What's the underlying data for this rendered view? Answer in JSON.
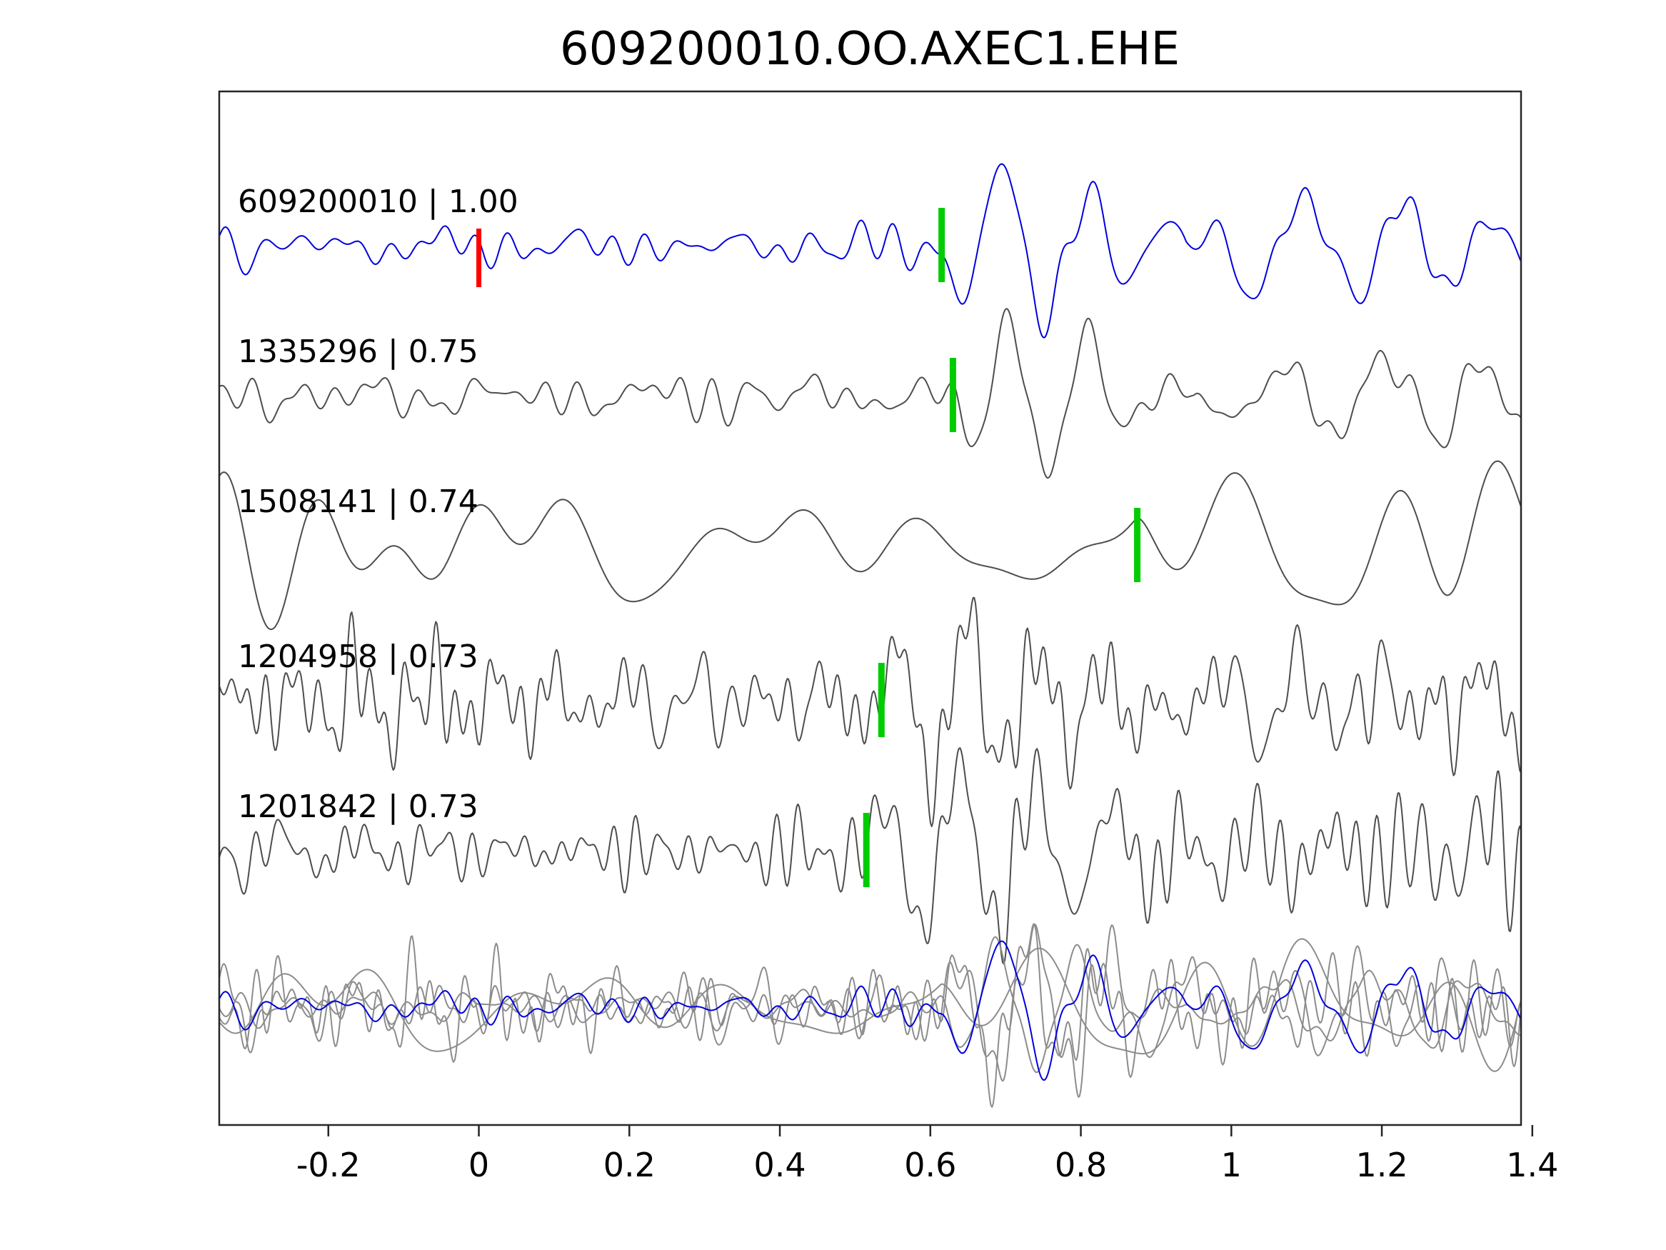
{
  "title": "609200010.OO.AXEC1.EHE",
  "colors": {
    "reference_trace": "#0000dd",
    "match_trace": "#4d4d4d",
    "overlay_trace": "#8c8c8c",
    "pick_marker": "#00cc00",
    "zero_marker": "#ff0000",
    "axis": "#262626",
    "text": "#000000",
    "background": "#ffffff"
  },
  "chart_data": {
    "type": "line",
    "title": "609200010.OO.AXEC1.EHE",
    "xlabel": "",
    "ylabel": "",
    "grid": false,
    "legend": null,
    "xlim": [
      -0.345,
      1.385
    ],
    "axis": {
      "ticks": [
        {
          "value": -0.2,
          "label": "-0.2"
        },
        {
          "value": 0,
          "label": "0"
        },
        {
          "value": 0.2,
          "label": "0.2"
        },
        {
          "value": 0.4,
          "label": "0.4"
        },
        {
          "value": 0.6,
          "label": "0.6"
        },
        {
          "value": 0.8,
          "label": "0.8"
        },
        {
          "value": 1,
          "label": "1"
        },
        {
          "value": 1.2,
          "label": "1.2"
        },
        {
          "value": 1.4,
          "label": "1.4"
        }
      ]
    },
    "traces": [
      {
        "id": "609200010",
        "correlation": "1.00",
        "label": "609200010 | 1.00",
        "is_reference": true,
        "pick_time": 0.615,
        "zero_marker": 0,
        "render": {
          "seed": 42,
          "noise_amp": 15,
          "noise_freq": 18,
          "events": [
            {
              "t": 0.615,
              "amp": 118,
              "freq": 9,
              "phase": 3.3,
              "ramp": 0.085
            },
            {
              "t": 0.94,
              "amp": 88,
              "freq": 7.5,
              "phase": 0.5,
              "ramp": 0.1
            },
            {
              "t": 1.22,
              "amp": 40,
              "freq": 9,
              "phase": 1.2,
              "ramp": 0.12
            }
          ]
        }
      },
      {
        "id": "1335296",
        "correlation": "0.75",
        "label": "1335296 | 0.75",
        "is_reference": false,
        "pick_time": 0.63,
        "zero_marker": null,
        "render": {
          "seed": 7,
          "noise_amp": 16,
          "noise_freq": 16,
          "events": [
            {
              "t": 0.63,
              "amp": 108,
              "freq": 9.5,
              "phase": 3.4,
              "ramp": 0.08
            },
            {
              "t": 0.95,
              "amp": 52,
              "freq": 8,
              "phase": 1.5,
              "ramp": 0.12
            },
            {
              "t": 1.2,
              "amp": 48,
              "freq": 9,
              "phase": 0.2,
              "ramp": 0.13
            }
          ]
        }
      },
      {
        "id": "1508141",
        "correlation": "0.74",
        "label": "1508141 | 0.74",
        "is_reference": false,
        "pick_time": 0.875,
        "zero_marker": null,
        "render": {
          "seed": 19,
          "noise_amp": 42,
          "noise_freq": 5.5,
          "events": [
            {
              "t": 0.875,
              "amp": 130,
              "freq": 5,
              "phase": 3.6,
              "ramp": 0.1
            },
            {
              "t": 1.28,
              "amp": 45,
              "freq": 5,
              "phase": 0,
              "ramp": 0.12
            }
          ]
        }
      },
      {
        "id": "1204958",
        "correlation": "0.73",
        "label": "1204958 | 0.73",
        "is_reference": false,
        "pick_time": 0.535,
        "zero_marker": null,
        "render": {
          "seed": 23,
          "noise_amp": 34,
          "noise_freq": 26,
          "events": [
            {
              "t": 0.535,
              "amp": 95,
              "freq": 10.5,
              "phase": 0.3,
              "ramp": 0.1
            },
            {
              "t": 0.88,
              "amp": 62,
              "freq": 9,
              "phase": 2.0,
              "ramp": 0.12
            },
            {
              "t": 1.24,
              "amp": 40,
              "freq": 11,
              "phase": 1.0,
              "ramp": 0.1
            }
          ]
        }
      },
      {
        "id": "1201842",
        "correlation": "0.73",
        "label": "1201842 | 0.73",
        "is_reference": false,
        "pick_time": 0.515,
        "zero_marker": null,
        "render": {
          "seed": 31,
          "noise_amp": 34,
          "noise_freq": 24,
          "events": [
            {
              "t": 0.515,
              "amp": 92,
              "freq": 10,
              "phase": 0.0,
              "ramp": 0.1
            },
            {
              "t": 0.9,
              "amp": 48,
              "freq": 9,
              "phase": 1.0,
              "ramp": 0.12
            },
            {
              "t": 1.25,
              "amp": 36,
              "freq": 10,
              "phase": 2.0,
              "ramp": 0.1
            }
          ]
        }
      }
    ],
    "overlay": {
      "description": "all traces overplotted, aligned on pick times, reference in blue",
      "aligned_to_pick": 0.615,
      "amplitude_scale": 0.8
    }
  }
}
